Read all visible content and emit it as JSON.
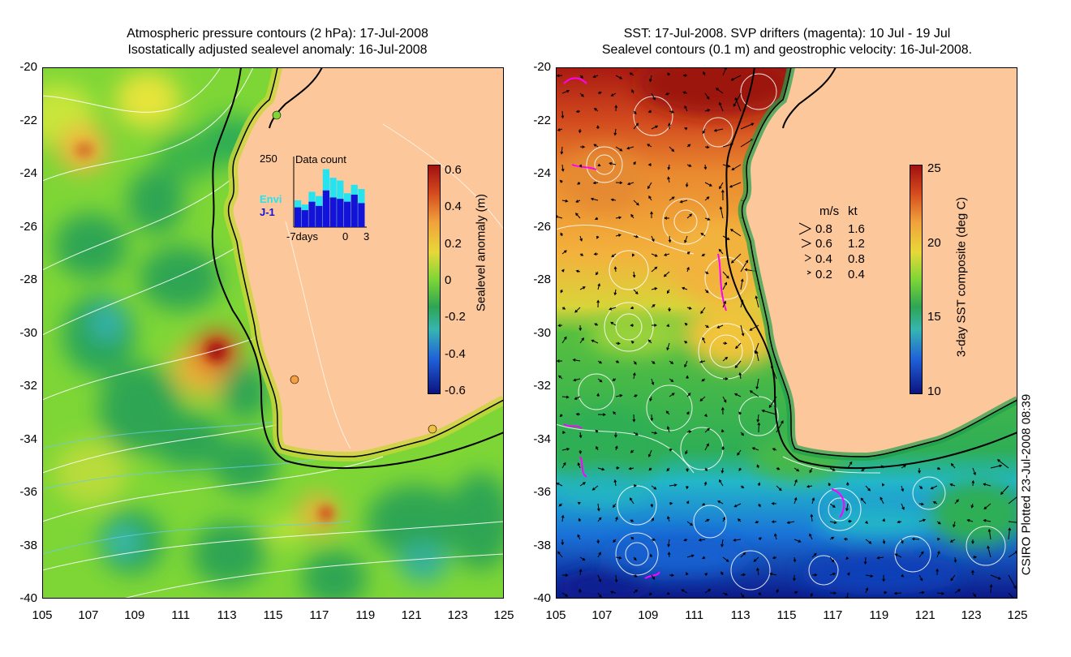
{
  "left_panel": {
    "title_line1": "Atmospheric pressure contours (2 hPa): 17-Jul-2008",
    "title_line2": "Isostatically adjusted sealevel anomaly: 16-Jul-2008",
    "y_ticks": [
      "-20",
      "-22",
      "-24",
      "-26",
      "-28",
      "-30",
      "-32",
      "-34",
      "-36",
      "-38",
      "-40"
    ],
    "x_ticks": [
      "105",
      "107",
      "109",
      "111",
      "113",
      "115",
      "117",
      "119",
      "121",
      "123",
      "125"
    ],
    "colorbar": {
      "label": "Sealevel anomaly (m)",
      "ticks": [
        "0.6",
        "0.4",
        "0.2",
        "0",
        "-0.2",
        "-0.4",
        "-0.6"
      ]
    },
    "histogram": {
      "title": "Data count",
      "max_label": "250",
      "series_labels": [
        "Envi",
        "J-1"
      ],
      "x_labels": [
        "-7days",
        "0",
        "3"
      ],
      "envi_counts": [
        95,
        80,
        125,
        110,
        205,
        175,
        165,
        120,
        150,
        135
      ],
      "j1_counts": [
        70,
        60,
        90,
        75,
        130,
        105,
        100,
        90,
        115,
        85
      ]
    }
  },
  "right_panel": {
    "title_line1": "SST: 17-Jul-2008. SVP drifters (magenta): 10 Jul - 19 Jul",
    "title_line2": "Sealevel contours (0.1 m) and geostrophic velocity: 16-Jul-2008.",
    "y_ticks": [
      "-20",
      "-22",
      "-24",
      "-26",
      "-28",
      "-30",
      "-32",
      "-34",
      "-36",
      "-38",
      "-40"
    ],
    "x_ticks": [
      "105",
      "107",
      "109",
      "111",
      "113",
      "115",
      "117",
      "119",
      "121",
      "123",
      "125"
    ],
    "colorbar": {
      "label": "3-day SST composite (deg C)",
      "ticks": [
        "25",
        "20",
        "15",
        "10"
      ]
    },
    "velocity_legend": {
      "header_ms": "m/s",
      "header_kt": "kt",
      "rows": [
        {
          "ms": "0.8",
          "kt": "1.6"
        },
        {
          "ms": "0.6",
          "kt": "1.2"
        },
        {
          "ms": "0.4",
          "kt": "0.8"
        },
        {
          "ms": "0.2",
          "kt": "0.4"
        }
      ]
    }
  },
  "credit": "CSIRO Plotted 23-Jul-2008 08:39",
  "colors": {
    "land": "#fcc89b",
    "coast": "#000000",
    "contour": "#ffffff",
    "drifter": "#ff00ff",
    "envi": "#26e3ef",
    "j1": "#1212d8"
  }
}
